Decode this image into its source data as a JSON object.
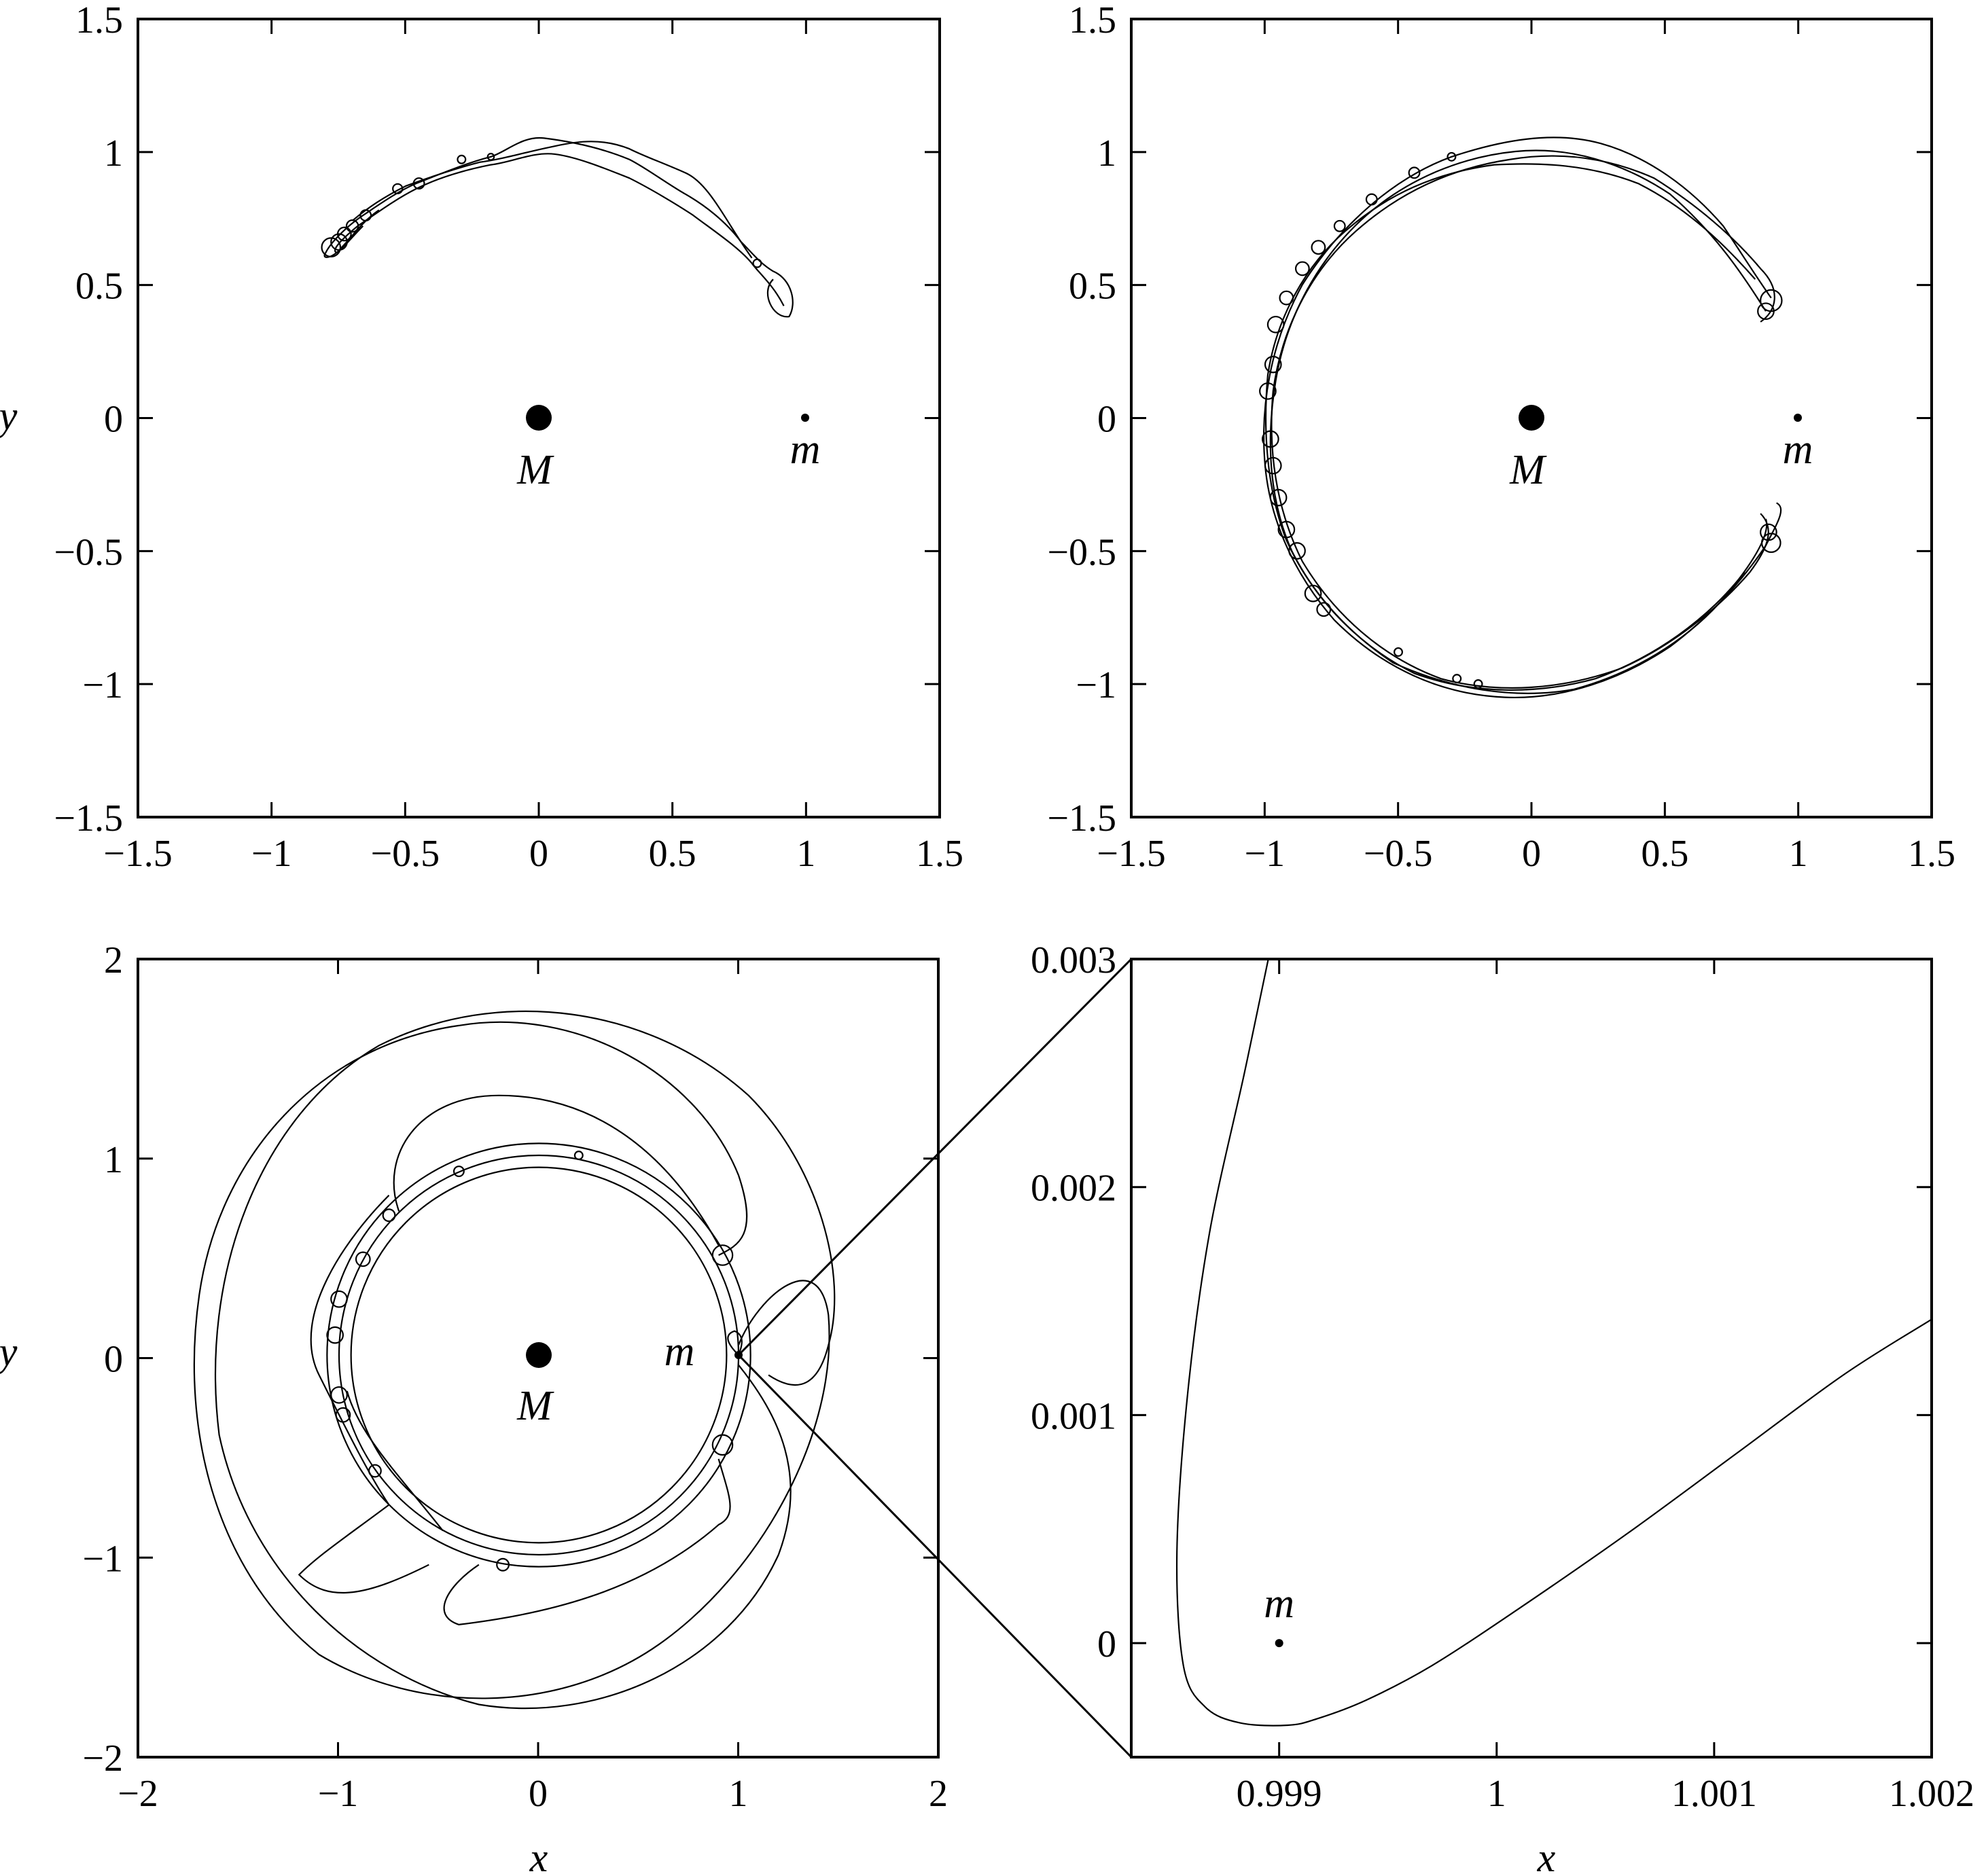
{
  "chart_data": [
    {
      "type": "line",
      "panel": "top-left",
      "xlabel": "",
      "ylabel": "y",
      "xlim": [
        -1.5,
        1.5
      ],
      "ylim": [
        -1.5,
        1.5
      ],
      "xticks": [
        -1.5,
        -1,
        -0.5,
        0,
        0.5,
        1,
        1.5
      ],
      "yticks": [
        -1.5,
        -1,
        -0.5,
        0,
        0.5,
        1,
        1.5
      ],
      "xtick_labels": [
        "−1.5",
        "−1",
        "−0.5",
        "0",
        "0.5",
        "1",
        "1.5"
      ],
      "ytick_labels": [
        "−1.5",
        "−1",
        "−0.5",
        "0",
        "0.5",
        "1",
        "1.5"
      ],
      "masses": [
        {
          "label": "M",
          "x": 0,
          "y": 0,
          "size": "large"
        },
        {
          "label": "m",
          "x": 1,
          "y": 0,
          "size": "small"
        }
      ],
      "trajectory": "horseshoe arc with epicycle loops along the upper side, from x≈0.9,y≈0.5 to x≈-0.8,y≈0.65"
    },
    {
      "type": "line",
      "panel": "top-right",
      "xlabel": "",
      "ylabel": "",
      "xlim": [
        -1.5,
        1.5
      ],
      "ylim": [
        -1.5,
        1.5
      ],
      "xticks": [
        -1.5,
        -1,
        -0.5,
        0,
        0.5,
        1,
        1.5
      ],
      "yticks": [
        -1.5,
        -1,
        -0.5,
        0,
        0.5,
        1,
        1.5
      ],
      "xtick_labels": [
        "−1.5",
        "−1",
        "−0.5",
        "0",
        "0.5",
        "1",
        "1.5"
      ],
      "ytick_labels": [
        "−1.5",
        "−1",
        "−0.5",
        "0",
        "0.5",
        "1",
        "1.5"
      ],
      "masses": [
        {
          "label": "M",
          "x": 0,
          "y": 0,
          "size": "large"
        },
        {
          "label": "m",
          "x": 1,
          "y": 0,
          "size": "small"
        }
      ],
      "trajectory": "full horseshoe orbit around M, open near m, with many epicycle loops"
    },
    {
      "type": "line",
      "panel": "bottom-left",
      "xlabel": "x",
      "ylabel": "y",
      "xlim": [
        -2,
        2
      ],
      "ylim": [
        -2,
        2
      ],
      "xticks": [
        -2,
        -1,
        0,
        1,
        2
      ],
      "yticks": [
        -2,
        -1,
        0,
        1,
        2
      ],
      "xtick_labels": [
        "−2",
        "−1",
        "0",
        "1",
        "2"
      ],
      "ytick_labels": [
        "−2",
        "−1",
        "0",
        "1",
        "2"
      ],
      "masses": [
        {
          "label": "M",
          "x": 0,
          "y": 0,
          "size": "large"
        },
        {
          "label": "m",
          "x": 1,
          "y": 0,
          "size": "small"
        }
      ],
      "trajectory": "tangled ring of loops at r≈1 plus large excursions reaching r≈1.8"
    },
    {
      "type": "line",
      "panel": "bottom-right",
      "xlabel": "x",
      "ylabel": "",
      "xlim": [
        0.99832,
        1.002
      ],
      "ylim": [
        -0.0005,
        0.003
      ],
      "xticks": [
        0.999,
        1,
        1.001,
        1.002
      ],
      "yticks": [
        0,
        0.001,
        0.002,
        0.003
      ],
      "xtick_labels": [
        "0.999",
        "1",
        "1.001",
        "1.002"
      ],
      "ytick_labels": [
        "0",
        "0.001",
        "0.002",
        "0.003"
      ],
      "masses": [
        {
          "label": "m",
          "x": 0.999,
          "y": 0,
          "size": "small"
        }
      ],
      "x": [
        0.99895,
        0.99884,
        0.99868,
        0.99858,
        0.99853,
        0.99856,
        0.99866,
        0.99882,
        0.99904,
        0.99918,
        0.9994,
        0.9997,
        1.0001,
        1.0006,
        1.0011,
        1.0016,
        1.002
      ],
      "y": [
        0.003,
        0.0025,
        0.0018,
        0.0011,
        0.0004,
        -0.0001,
        -0.00028,
        -0.00035,
        -0.00036,
        -0.00033,
        -0.00025,
        -0.0001,
        0.00015,
        0.00048,
        0.00083,
        0.00118,
        0.00142
      ]
    }
  ]
}
